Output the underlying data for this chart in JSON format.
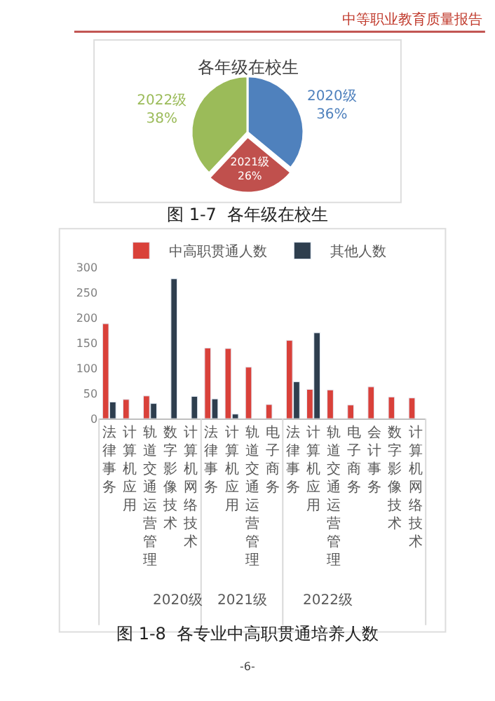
{
  "chart_data": [
    {
      "type": "pie",
      "title": "各年级在校生",
      "categories": [
        "2020级",
        "2021级",
        "2022级"
      ],
      "values": [
        36,
        26,
        38
      ],
      "value_labels": [
        "36%",
        "26%",
        "38%"
      ],
      "colors": [
        "#4f81bd",
        "#c0504d",
        "#9bbb59"
      ],
      "legend": false,
      "annotations": [
        "中等职业教育质量报告",
        "图 1-7  各年级在校生"
      ]
    },
    {
      "type": "bar",
      "categories": [
        "法律事务",
        "计算机应用",
        "轨道交通运营管理",
        "数字影像技术",
        "计算机网络技术",
        "法律事务",
        "计算机应用",
        "轨道交通运营管理",
        "电子商务",
        "法律事务",
        "计算机应用",
        "轨道交通运营管理",
        "电子商务",
        "会计事务",
        "数字影像技术",
        "计算机网络技术"
      ],
      "series": [
        {
          "name": "中高职贯通人数",
          "color": "#d9413a",
          "values": [
            188,
            38,
            45,
            null,
            null,
            140,
            139,
            102,
            28,
            155,
            58,
            57,
            27,
            63,
            43,
            41
          ]
        },
        {
          "name": "其他人数",
          "color": "#2e3e4e",
          "values": [
            33,
            null,
            30,
            277,
            44,
            39,
            9,
            null,
            null,
            73,
            170,
            null,
            null,
            null,
            null,
            null
          ]
        }
      ],
      "ylim": [
        0,
        300
      ],
      "yticks": [
        0,
        50,
        100,
        150,
        200,
        250,
        300
      ],
      "grid": false,
      "legend": "top right",
      "annotations": [
        "2020级",
        "2021级",
        "2022级",
        "图 1-8  各专业中高职贯通培养人数",
        "-6-"
      ]
    }
  ]
}
